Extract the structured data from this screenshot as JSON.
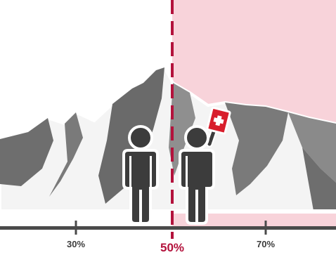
{
  "scale": {
    "ticks": [
      {
        "label": "30%"
      },
      {
        "label": "70%"
      }
    ],
    "center_label": "50%"
  },
  "colors": {
    "highlight_region": "#f8d3da",
    "divider": "#b3123c",
    "mountain_dark": "#6e6e6e",
    "mountain_mid": "#8f8f8f",
    "mountain_light": "#f4f4f4",
    "figure": "#3c3c3c",
    "flag": "#d81e2c",
    "axis": "#4a4a4a"
  },
  "icons": [
    "person-icon",
    "person-with-flag-icon",
    "flag-icon",
    "mountain-range"
  ]
}
